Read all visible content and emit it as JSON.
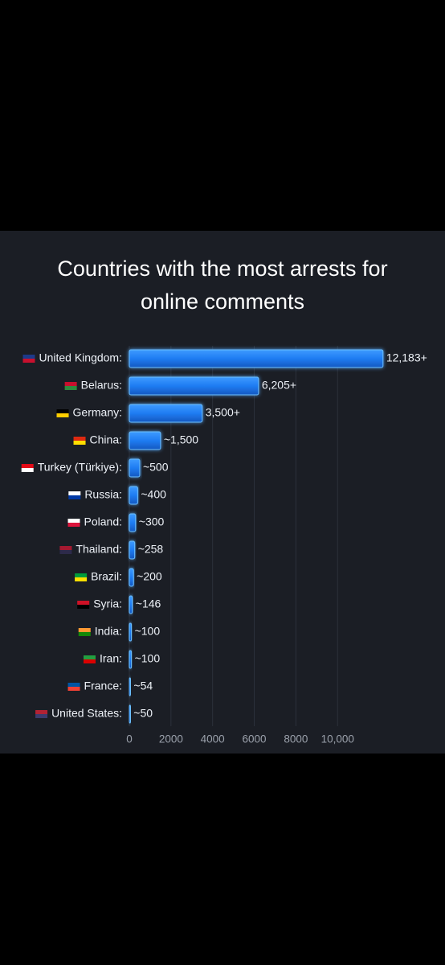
{
  "chart_data": {
    "type": "bar",
    "orientation": "horizontal",
    "title": "Countries with the most arrests for online comments",
    "categories": [
      "United Kingdom:",
      "Belarus:",
      "Germany:",
      "China:",
      "Turkey (Türkiye):",
      "Russia:",
      "Poland:",
      "Thailand:",
      "Brazil:",
      "Syria:",
      "India:",
      "Iran:",
      "France:",
      "United States:"
    ],
    "values": [
      12183,
      6205,
      3500,
      1500,
      500,
      400,
      300,
      258,
      200,
      146,
      100,
      100,
      54,
      50
    ],
    "value_labels": [
      "12,183+",
      "6,205+",
      "3,500+",
      "~1,500",
      "~500",
      "~400",
      "~300",
      "~258",
      "~200",
      "~146",
      "~100",
      "~100",
      "~54",
      "~50"
    ],
    "color": "#1f7cf2",
    "xlim": [
      0,
      13000
    ],
    "xticks": [
      0,
      2000,
      4000,
      6000,
      8000,
      {
        "value": 10000,
        "label": "10,000"
      }
    ],
    "grid": true
  }
}
